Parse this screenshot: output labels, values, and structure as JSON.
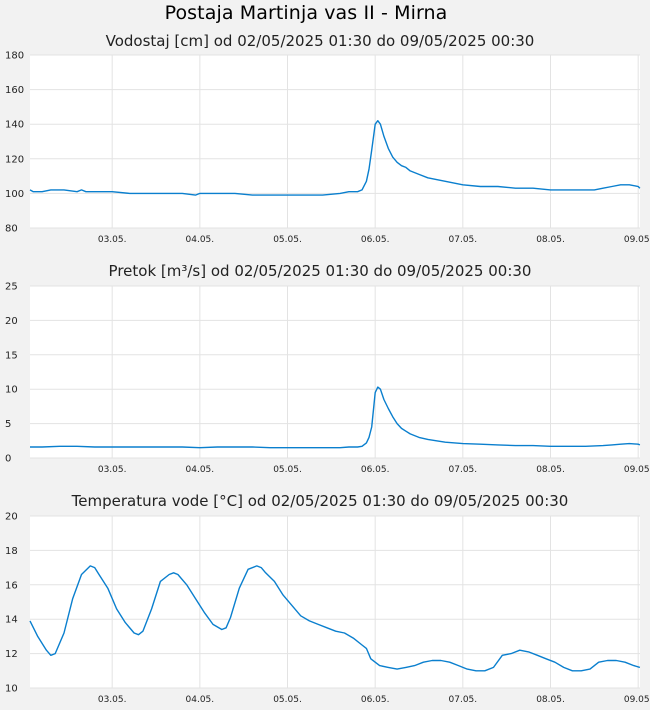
{
  "page_title": "Postaja Martinja vas II - Mirna",
  "line_color": "#0a7fce",
  "chart_data": [
    {
      "type": "line",
      "title": "Vodostaj [cm] od 02/05/2025 01:30 do 09/05/2025 00:30",
      "xlabel": "",
      "ylabel": "",
      "ylim": [
        80,
        180
      ],
      "yticks": [
        "80",
        "100",
        "120",
        "140",
        "160",
        "180"
      ],
      "xticks": [
        "03.05.",
        "04.05.",
        "05.05.",
        "06.05.",
        "07.05.",
        "08.05.",
        "09.05."
      ],
      "xlim_days": [
        2.0625,
        9.02083
      ],
      "grid": true,
      "series": [
        {
          "x": [
            2.0625,
            2.1,
            2.2,
            2.3,
            2.45,
            2.6,
            2.65,
            2.7,
            2.8,
            3.0,
            3.2,
            3.4,
            3.5,
            3.6,
            3.8,
            3.95,
            4.0,
            4.1,
            4.2,
            4.4,
            4.6,
            4.8,
            5.0,
            5.2,
            5.4,
            5.6,
            5.7,
            5.8,
            5.85,
            5.9,
            5.93,
            5.96,
            6.0,
            6.03,
            6.06,
            6.1,
            6.15,
            6.2,
            6.25,
            6.3,
            6.35,
            6.4,
            6.5,
            6.6,
            6.7,
            6.8,
            7.0,
            7.2,
            7.4,
            7.6,
            7.8,
            8.0,
            8.2,
            8.4,
            8.5,
            8.6,
            8.7,
            8.8,
            8.9,
            9.0,
            9.02
          ],
          "y": [
            102,
            101,
            101,
            102,
            102,
            101,
            102,
            101,
            101,
            101,
            100,
            100,
            100,
            100,
            100,
            99,
            100,
            100,
            100,
            100,
            99,
            99,
            99,
            99,
            99,
            100,
            101,
            101,
            102,
            107,
            114,
            125,
            140,
            142,
            140,
            133,
            126,
            121,
            118,
            116,
            115,
            113,
            111,
            109,
            108,
            107,
            105,
            104,
            104,
            103,
            103,
            102,
            102,
            102,
            102,
            103,
            104,
            105,
            105,
            104,
            103
          ]
        }
      ]
    },
    {
      "type": "line",
      "title": "Pretok [m³/s] od 02/05/2025 01:30 do 09/05/2025 00:30",
      "xlabel": "",
      "ylabel": "",
      "ylim": [
        0,
        25
      ],
      "yticks": [
        "0",
        "5",
        "10",
        "15",
        "20",
        "25"
      ],
      "xticks": [
        "03.05.",
        "04.05.",
        "05.05.",
        "06.05.",
        "07.05.",
        "08.05.",
        "09.05."
      ],
      "xlim_days": [
        2.0625,
        9.02083
      ],
      "grid": true,
      "series": [
        {
          "x": [
            2.0625,
            2.2,
            2.4,
            2.6,
            2.8,
            3.0,
            3.2,
            3.4,
            3.6,
            3.8,
            4.0,
            4.2,
            4.4,
            4.6,
            4.8,
            5.0,
            5.2,
            5.4,
            5.6,
            5.7,
            5.8,
            5.85,
            5.9,
            5.93,
            5.96,
            6.0,
            6.03,
            6.06,
            6.1,
            6.15,
            6.2,
            6.25,
            6.3,
            6.35,
            6.4,
            6.5,
            6.6,
            6.7,
            6.8,
            7.0,
            7.2,
            7.4,
            7.6,
            7.8,
            8.0,
            8.2,
            8.4,
            8.6,
            8.7,
            8.8,
            8.9,
            9.0,
            9.02
          ],
          "y": [
            1.6,
            1.6,
            1.7,
            1.7,
            1.6,
            1.6,
            1.6,
            1.6,
            1.6,
            1.6,
            1.5,
            1.6,
            1.6,
            1.6,
            1.5,
            1.5,
            1.5,
            1.5,
            1.5,
            1.6,
            1.6,
            1.7,
            2.2,
            3.0,
            4.5,
            9.5,
            10.3,
            10.0,
            8.5,
            7.2,
            6.0,
            5.0,
            4.3,
            3.9,
            3.5,
            3.0,
            2.7,
            2.5,
            2.3,
            2.1,
            2.0,
            1.9,
            1.8,
            1.8,
            1.7,
            1.7,
            1.7,
            1.8,
            1.9,
            2.0,
            2.1,
            2.0,
            1.9
          ]
        }
      ]
    },
    {
      "type": "line",
      "title": "Temperatura vode [°C] od 02/05/2025 01:30 do 09/05/2025 00:30",
      "xlabel": "",
      "ylabel": "",
      "ylim": [
        10,
        20
      ],
      "yticks": [
        "10",
        "12",
        "14",
        "16",
        "18",
        "20"
      ],
      "xticks": [
        "03.05.",
        "04.05.",
        "05.05.",
        "06.05.",
        "07.05.",
        "08.05.",
        "09.05."
      ],
      "xlim_days": [
        2.0625,
        9.02083
      ],
      "grid": true,
      "series": [
        {
          "x": [
            2.0625,
            2.15,
            2.25,
            2.3,
            2.35,
            2.45,
            2.55,
            2.65,
            2.75,
            2.8,
            2.85,
            2.95,
            3.05,
            3.15,
            3.25,
            3.3,
            3.35,
            3.45,
            3.55,
            3.65,
            3.7,
            3.75,
            3.85,
            3.95,
            4.05,
            4.15,
            4.25,
            4.3,
            4.35,
            4.45,
            4.55,
            4.65,
            4.7,
            4.75,
            4.85,
            4.95,
            5.05,
            5.15,
            5.25,
            5.35,
            5.45,
            5.55,
            5.65,
            5.75,
            5.85,
            5.9,
            5.95,
            6.05,
            6.15,
            6.25,
            6.35,
            6.45,
            6.55,
            6.65,
            6.75,
            6.85,
            6.95,
            7.05,
            7.15,
            7.25,
            7.35,
            7.45,
            7.55,
            7.65,
            7.75,
            7.85,
            7.95,
            8.05,
            8.15,
            8.25,
            8.35,
            8.45,
            8.55,
            8.65,
            8.75,
            8.85,
            8.95,
            9.02
          ],
          "y": [
            13.9,
            13.0,
            12.2,
            11.9,
            12.0,
            13.2,
            15.2,
            16.6,
            17.1,
            17.0,
            16.6,
            15.8,
            14.6,
            13.8,
            13.2,
            13.1,
            13.3,
            14.6,
            16.2,
            16.6,
            16.7,
            16.6,
            16.0,
            15.2,
            14.4,
            13.7,
            13.4,
            13.5,
            14.1,
            15.8,
            16.9,
            17.1,
            17.0,
            16.7,
            16.2,
            15.4,
            14.8,
            14.2,
            13.9,
            13.7,
            13.5,
            13.3,
            13.2,
            12.9,
            12.5,
            12.3,
            11.7,
            11.3,
            11.2,
            11.1,
            11.2,
            11.3,
            11.5,
            11.6,
            11.6,
            11.5,
            11.3,
            11.1,
            11.0,
            11.0,
            11.2,
            11.9,
            12.0,
            12.2,
            12.1,
            11.9,
            11.7,
            11.5,
            11.2,
            11.0,
            11.0,
            11.1,
            11.5,
            11.6,
            11.6,
            11.5,
            11.3,
            11.2
          ]
        }
      ]
    }
  ]
}
